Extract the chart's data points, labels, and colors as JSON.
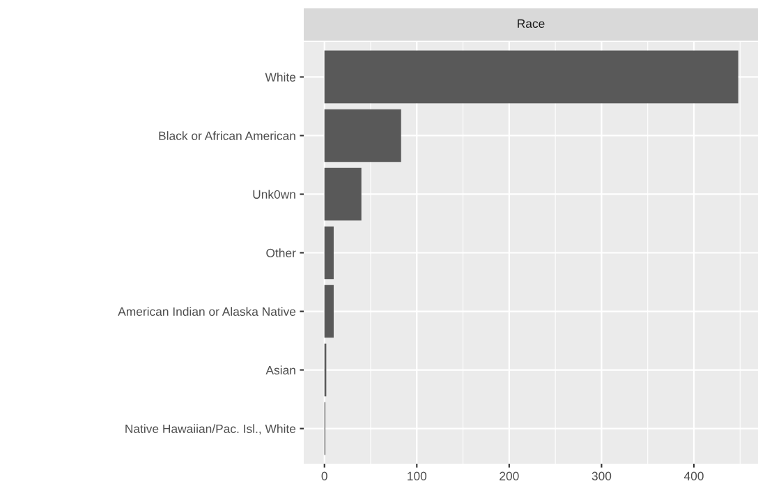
{
  "chart_data": {
    "type": "bar",
    "orientation": "horizontal",
    "title": "Race",
    "categories": [
      "White",
      "Black or African American",
      "Unk0wn",
      "Other",
      "American Indian or Alaska Native",
      "Asian",
      "Native Hawaiian/Pac. Isl., White"
    ],
    "values": [
      448,
      83,
      40,
      10,
      10,
      2,
      1
    ],
    "color": "#595959",
    "xlim": [
      -22.4,
      469.4
    ],
    "xticks": [
      0,
      100,
      200,
      300,
      400
    ],
    "grid": true
  }
}
